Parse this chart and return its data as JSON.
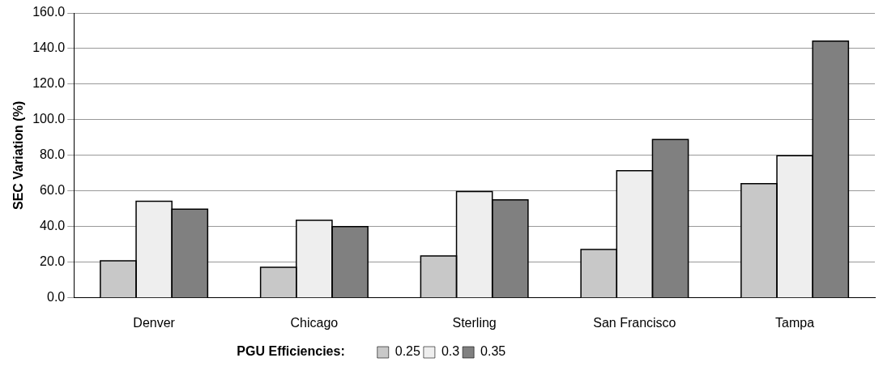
{
  "chart_data": {
    "type": "bar",
    "ylabel": "SEC Variation (%)",
    "legend_title": "PGU Efficiencies:",
    "categories": [
      "Denver",
      "Chicago",
      "Sterling",
      "San Francisco",
      "Tampa"
    ],
    "series": [
      {
        "name": "0.25",
        "color": "#c8c8c8",
        "values": [
          20.8,
          17.2,
          23.6,
          27.2,
          64.2
        ]
      },
      {
        "name": "0.3",
        "color": "#eeeeee",
        "values": [
          54.3,
          43.6,
          59.7,
          71.4,
          79.8
        ]
      },
      {
        "name": "0.35",
        "color": "#808080",
        "values": [
          49.8,
          40.0,
          55.1,
          88.9,
          144.2
        ]
      }
    ],
    "ylim": [
      0,
      160
    ],
    "yticks": [
      {
        "value": 0,
        "label": "0.0"
      },
      {
        "value": 20,
        "label": "20.0"
      },
      {
        "value": 40,
        "label": "40.0"
      },
      {
        "value": 60,
        "label": "60.0"
      },
      {
        "value": 80,
        "label": "80.0"
      },
      {
        "value": 100,
        "label": "100.0"
      },
      {
        "value": 120,
        "label": "120.0"
      },
      {
        "value": 140,
        "label": "140.0"
      },
      {
        "value": 160,
        "label": "160.0"
      }
    ],
    "grid": "y",
    "legend": "bottom"
  }
}
